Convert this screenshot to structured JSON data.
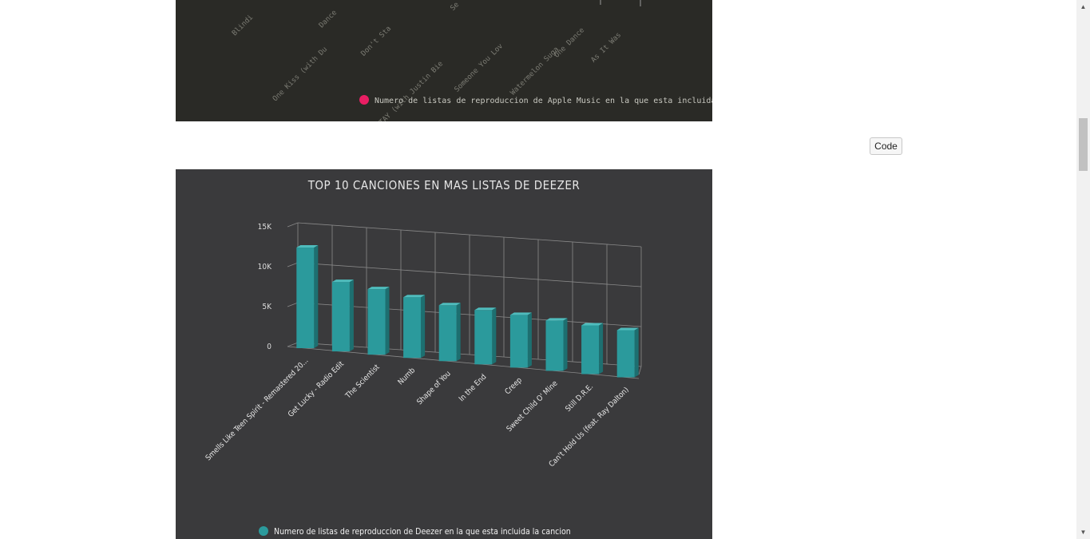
{
  "top_chart": {
    "visible_labels": [
      "Blindi",
      "One Kiss (with Du",
      "Dance",
      "Don't Sta",
      "STAY (with Justin Bie",
      "Se",
      "Someone You Lov",
      "Watermelon Suga",
      "One Dance",
      "As It Was"
    ],
    "legend": "Numero de listas de reproduccion de Apple Music en la que esta incluida",
    "legend_color": "#e91e63"
  },
  "code_button": {
    "label": "Code"
  },
  "chart_data": {
    "type": "bar",
    "title": "TOP 10 CANCIONES EN MAS LISTAS DE DEEZER",
    "categories": [
      "Smells Like Teen Spirit - Remastered 20...",
      "Get Lucky - Radio Edit",
      "The Scientist",
      "Numb",
      "Shape of You",
      "In the End",
      "Creep",
      "Sweet Child O' Mine",
      "Still D.R.E.",
      "Can't Hold Us (feat. Ray Dalton)"
    ],
    "series": [
      {
        "name": "Numero de listas de reproduccion de Deezer en la que esta incluida la cancion",
        "values": [
          12600,
          8700,
          8200,
          7600,
          7000,
          6800,
          6600,
          6300,
          6100,
          5900
        ],
        "color": "#2b9a9c"
      }
    ],
    "y_ticks": [
      "15K",
      "10K",
      "5K",
      "0"
    ],
    "ylim": [
      0,
      15000
    ],
    "grid": true,
    "legend_position": "bottom"
  }
}
